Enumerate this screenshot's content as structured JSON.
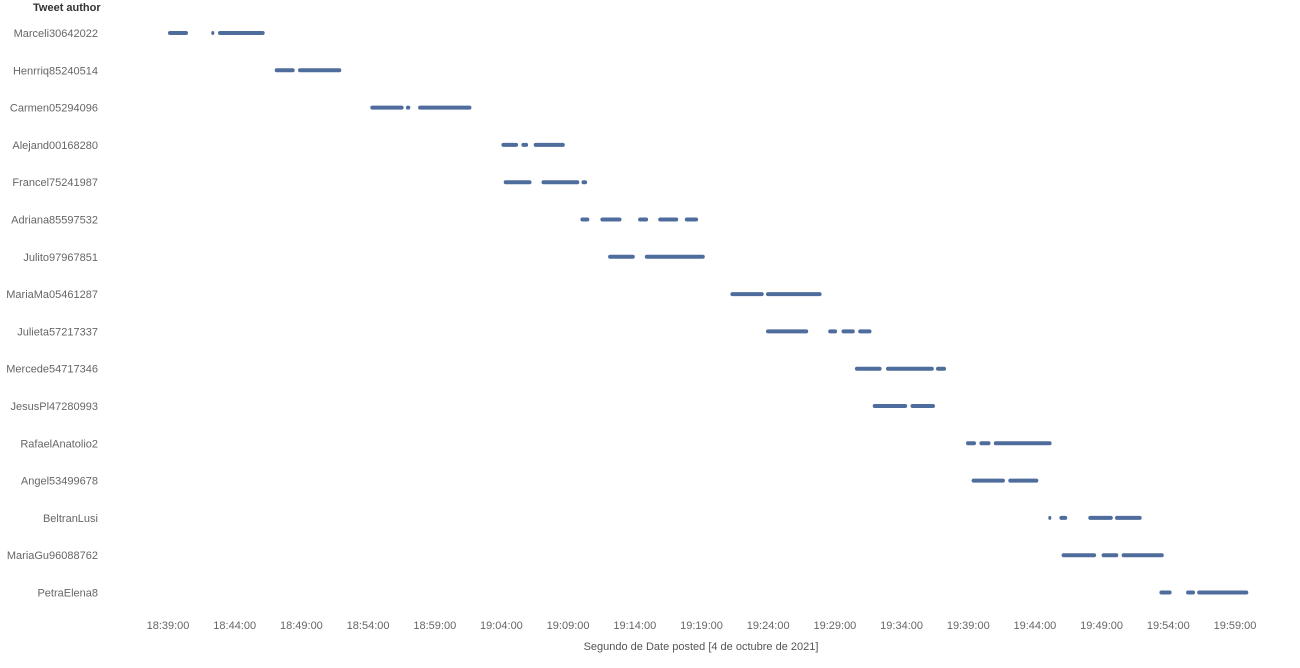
{
  "chart_data": {
    "type": "scatter",
    "title": "",
    "row_header": "Tweet author",
    "xlabel": "Segundo de Date posted [4 de octubre de 2021]",
    "x_range": [
      "18:35:00",
      "20:00:30"
    ],
    "x_ticks": [
      "18:39:00",
      "18:44:00",
      "18:49:00",
      "18:54:00",
      "18:59:00",
      "19:04:00",
      "19:09:00",
      "19:14:00",
      "19:19:00",
      "19:24:00",
      "19:29:00",
      "19:34:00",
      "19:39:00",
      "19:44:00",
      "19:49:00",
      "19:54:00",
      "19:59:00"
    ],
    "grid": false,
    "mark_color": "#4e6d9c",
    "authors": [
      {
        "name": "Marceli30642022",
        "segments": [
          [
            "18:39:00",
            "18:40:30"
          ],
          [
            "18:42:15",
            "18:42:25"
          ],
          [
            "18:42:45",
            "18:46:15"
          ]
        ]
      },
      {
        "name": "Henrriq85240514",
        "segments": [
          [
            "18:47:00",
            "18:48:30"
          ],
          [
            "18:48:45",
            "18:52:00"
          ]
        ]
      },
      {
        "name": "Carmen05294096",
        "segments": [
          [
            "18:54:10",
            "18:56:40"
          ],
          [
            "18:56:50",
            "18:57:10"
          ],
          [
            "18:57:45",
            "19:01:45"
          ]
        ]
      },
      {
        "name": "Alejand00168280",
        "segments": [
          [
            "19:04:00",
            "19:05:15"
          ],
          [
            "19:05:30",
            "19:06:00"
          ],
          [
            "19:06:25",
            "19:08:45"
          ]
        ]
      },
      {
        "name": "Francel75241987",
        "segments": [
          [
            "19:04:10",
            "19:06:15"
          ],
          [
            "19:07:00",
            "19:09:50"
          ],
          [
            "19:10:00",
            "19:10:25"
          ]
        ]
      },
      {
        "name": "Adriana85597532",
        "segments": [
          [
            "19:09:55",
            "19:10:35"
          ],
          [
            "19:11:25",
            "19:13:00"
          ],
          [
            "19:14:15",
            "19:15:00"
          ],
          [
            "19:15:45",
            "19:17:15"
          ],
          [
            "19:17:45",
            "19:18:45"
          ]
        ]
      },
      {
        "name": "Julito97967851",
        "segments": [
          [
            "19:12:00",
            "19:14:00"
          ],
          [
            "19:14:45",
            "19:19:15"
          ]
        ]
      },
      {
        "name": "MariaMa05461287",
        "segments": [
          [
            "19:21:10",
            "19:23:40"
          ],
          [
            "19:23:50",
            "19:28:00"
          ]
        ]
      },
      {
        "name": "Julieta57217337",
        "segments": [
          [
            "19:23:50",
            "19:27:00"
          ],
          [
            "19:28:30",
            "19:29:10"
          ],
          [
            "19:29:30",
            "19:30:30"
          ],
          [
            "19:30:45",
            "19:31:45"
          ]
        ]
      },
      {
        "name": "Mercede54717346",
        "segments": [
          [
            "19:30:30",
            "19:32:30"
          ],
          [
            "19:32:50",
            "19:36:25"
          ],
          [
            "19:36:35",
            "19:37:20"
          ]
        ]
      },
      {
        "name": "JesusPl47280993",
        "segments": [
          [
            "19:31:50",
            "19:34:25"
          ],
          [
            "19:34:40",
            "19:36:30"
          ]
        ]
      },
      {
        "name": "RafaelAnatolio2",
        "segments": [
          [
            "19:38:50",
            "19:39:35"
          ],
          [
            "19:39:50",
            "19:40:40"
          ],
          [
            "19:40:55",
            "19:45:15"
          ]
        ]
      },
      {
        "name": "Angel53499678",
        "segments": [
          [
            "19:39:15",
            "19:41:45"
          ],
          [
            "19:42:00",
            "19:44:15"
          ]
        ]
      },
      {
        "name": "BeltranLusi",
        "segments": [
          [
            "19:45:00",
            "19:45:10"
          ],
          [
            "19:45:50",
            "19:46:25"
          ],
          [
            "19:48:00",
            "19:49:50"
          ],
          [
            "19:50:00",
            "19:52:00"
          ]
        ]
      },
      {
        "name": "MariaGu96088762",
        "segments": [
          [
            "19:46:00",
            "19:48:35"
          ],
          [
            "19:49:00",
            "19:50:15"
          ],
          [
            "19:50:30",
            "19:53:40"
          ]
        ]
      },
      {
        "name": "PetraElena8",
        "segments": [
          [
            "19:53:20",
            "19:54:15"
          ],
          [
            "19:55:20",
            "19:56:00"
          ],
          [
            "19:56:10",
            "20:00:00"
          ]
        ]
      }
    ]
  }
}
